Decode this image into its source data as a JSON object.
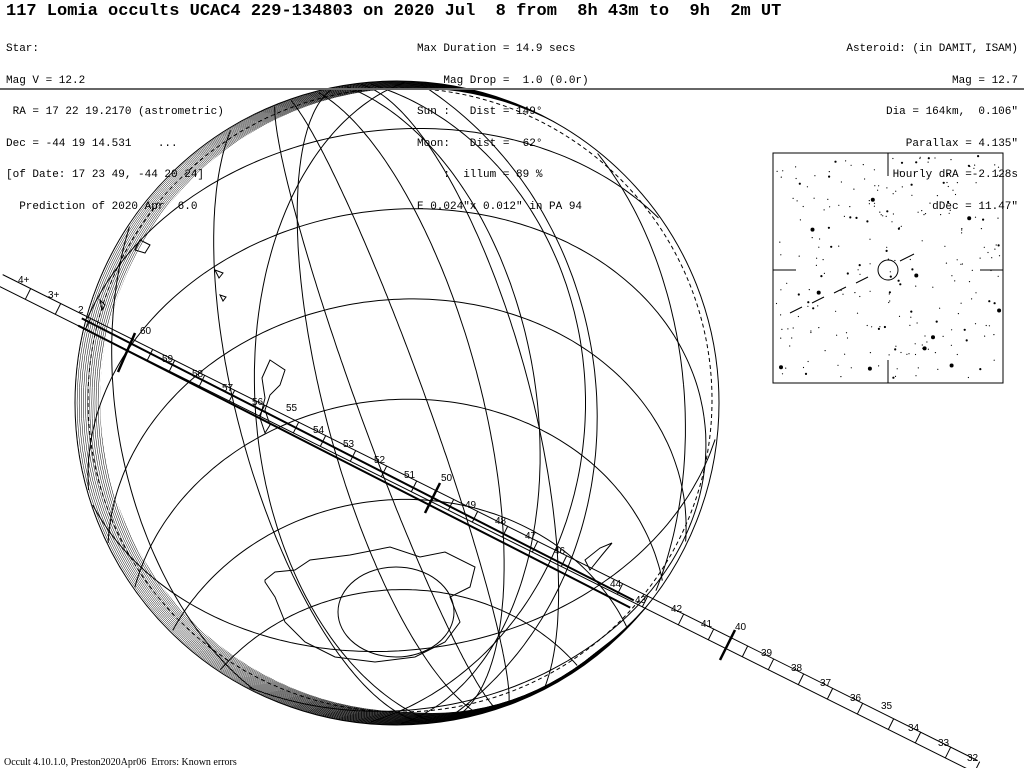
{
  "header": {
    "title": "117 Lomia occults UCAC4 229-134803 on 2020 Jul  8 from  8h 43m to  9h  2m UT",
    "star": [
      "Star:",
      "Mag V = 12.2",
      " RA = 17 22 19.2170 (astrometric)",
      "Dec = -44 19 14.531    ...",
      "[of Date: 17 23 49, -44 20 24]",
      "  Prediction of 2020 Apr  6.0"
    ],
    "event": [
      "Max Duration = 14.9 secs",
      "    Mag Drop =  1.0 (0.0r)",
      "Sun :   Dist = 149°",
      "Moon:   Dist =  62°",
      "    :  illum = 89 %",
      "E 0.024\"x 0.012\" in PA 94"
    ],
    "asteroid": [
      "Asteroid: (in DAMIT, ISAM)",
      "Mag = 12.7",
      "Dia = 164km,  0.106\"",
      "Parallax = 4.135\"",
      "Hourly dRA =-2.128s",
      "dDec = 11.47\""
    ]
  },
  "map": {
    "time_labels": [
      "4+",
      "3+",
      "2",
      "60",
      "59",
      "58",
      "57",
      "56",
      "55",
      "54",
      "53",
      "52",
      "51",
      "50",
      "49",
      "48",
      "47",
      "46",
      "44",
      "43",
      "42",
      "41",
      "40",
      "39",
      "38",
      "37",
      "36",
      "35",
      "34",
      "33",
      "32"
    ]
  },
  "footer": "Occult 4.10.1.0, Preston2020Apr06  Errors: Known errors"
}
